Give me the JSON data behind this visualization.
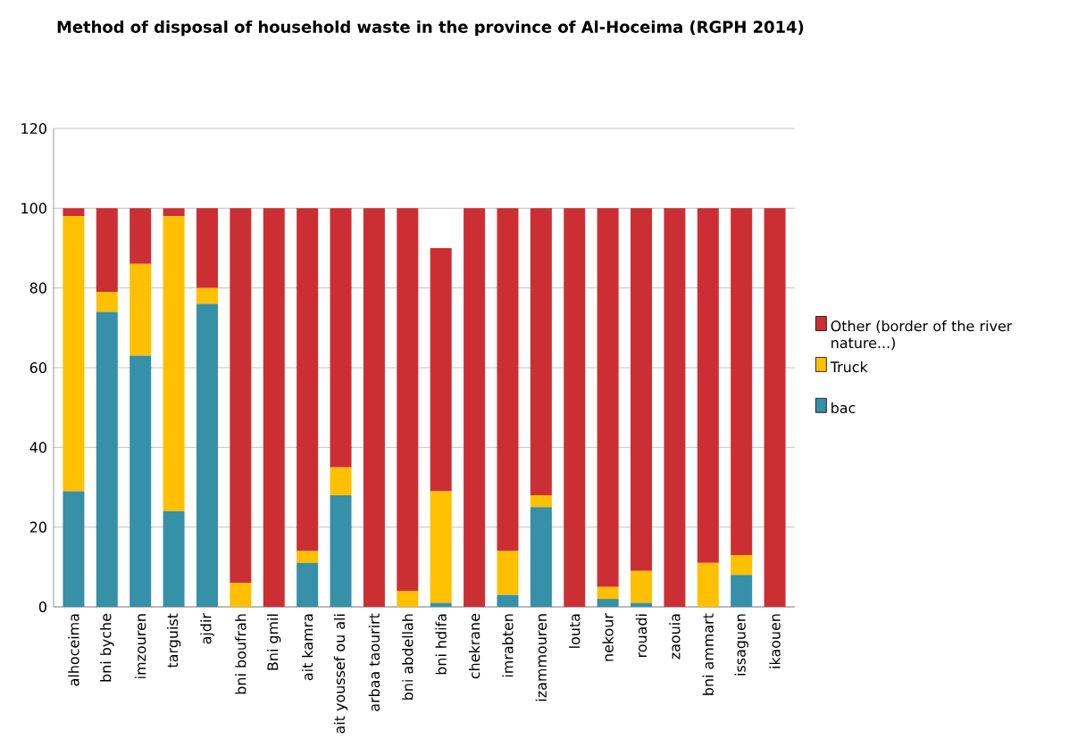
{
  "chart_data": {
    "type": "bar",
    "stacked": true,
    "title": "Method of disposal of household waste in the province of Al-Hoceima  (RGPH 2014)",
    "categories": [
      "alhoceima",
      "bni byche",
      "imzouren",
      "targuist",
      "ajdir",
      "bni boufrah",
      "Bni gmil",
      "ait kamra",
      "ait youssef ou ali",
      "arbaa taourirt",
      "bni abdellah",
      "bni hdifa",
      "chekrane",
      "imrabten",
      "izammouren",
      "louta",
      "nekour",
      "rouadi",
      "zaouia",
      "bni ammart",
      "issaguen",
      "ikaouen"
    ],
    "series": [
      {
        "name": "bac",
        "color": "#3590a8",
        "values": [
          29,
          74,
          63,
          24,
          76,
          0,
          0,
          11,
          28,
          0,
          0,
          1,
          0,
          3,
          25,
          0,
          2,
          1,
          0,
          0,
          8,
          0
        ]
      },
      {
        "name": "Truck",
        "color": "#ffc000",
        "values": [
          69,
          5,
          23,
          74,
          4,
          6,
          0,
          3,
          7,
          0,
          4,
          28,
          0,
          11,
          3,
          0,
          3,
          8,
          0,
          11,
          5,
          0
        ]
      },
      {
        "name": "Other (border of the river nature...)",
        "color": "#cc2f33",
        "values": [
          2,
          21,
          14,
          2,
          20,
          94,
          100,
          86,
          65,
          100,
          96,
          61,
          100,
          86,
          72,
          100,
          95,
          91,
          100,
          89,
          87,
          100
        ]
      }
    ],
    "ylim": [
      0,
      120
    ],
    "yticks": [
      0,
      20,
      40,
      60,
      80,
      100,
      120
    ],
    "grid": "y",
    "legend": "right"
  }
}
